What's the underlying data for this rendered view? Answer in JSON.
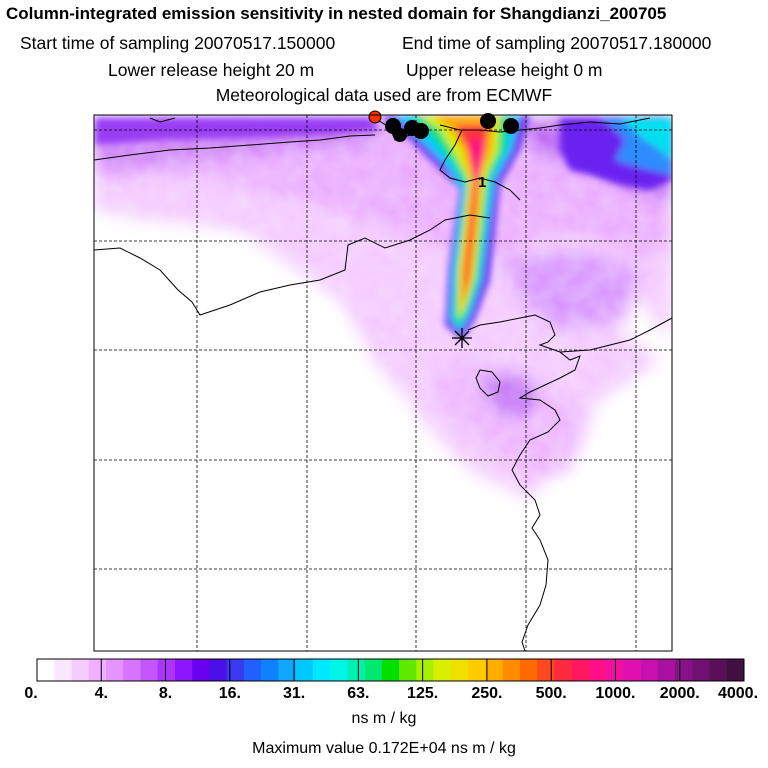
{
  "title": {
    "line1": "Column-integrated emission sensitivity in nested domain for Shangdianzi_200705",
    "start": "Start time of sampling 20070517.150000",
    "end": "End time of sampling 20070517.180000",
    "lower": "Lower release height   20 m",
    "upper": "Upper release height    0 m",
    "met": "Meteorological data used are from ECMWF"
  },
  "map": {
    "marker_label": "1",
    "receptor_symbol": "star",
    "colors": {
      "low_purple": "#cc55ee",
      "plume_red": "#ff2d55",
      "plume_yellow": "#ffdd00",
      "cyan": "#00e0f0"
    }
  },
  "colorbar": {
    "unit": "ns m / kg",
    "labels": [
      "0.",
      "4.",
      "8.",
      "16.",
      "31.",
      "63.",
      "125.",
      "250.",
      "500.",
      "1000.",
      "2000.",
      "4000."
    ],
    "colors": [
      "#ffffff",
      "#fbe6ff",
      "#f5ccff",
      "#efb0ff",
      "#e595ff",
      "#d874ff",
      "#c456ff",
      "#ab35ff",
      "#8e16ff",
      "#6a00f0",
      "#4a10e8",
      "#3a3af0",
      "#2060ff",
      "#1080ff",
      "#10a8ff",
      "#00c8ff",
      "#00e8ff",
      "#00f5e8",
      "#00f0b0",
      "#00e870",
      "#00e000",
      "#60e800",
      "#a8f000",
      "#d8f000",
      "#f0e000",
      "#ffcc00",
      "#ffae00",
      "#ff8c00",
      "#ff6a00",
      "#ff4820",
      "#ff2a40",
      "#ff1860",
      "#ff1088",
      "#f010a0",
      "#e010b0",
      "#c810b0",
      "#a810a0",
      "#881088",
      "#701070",
      "#581058",
      "#401040"
    ],
    "max_value": "Maximum value  0.172E+04 ns m / kg"
  }
}
